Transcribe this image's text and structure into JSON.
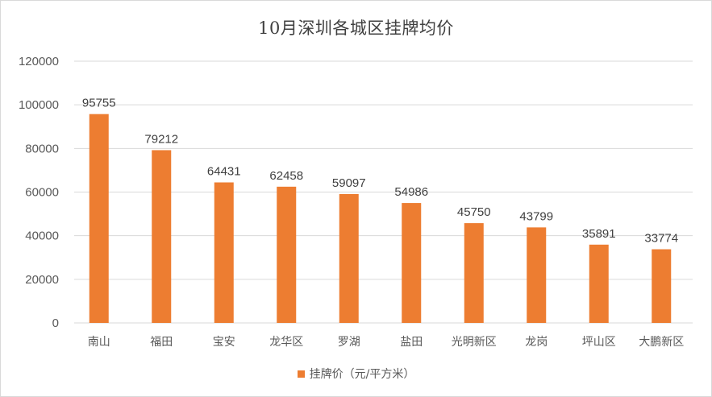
{
  "colors": {
    "bar": "#ed7d31",
    "grid": "#d9d9d9",
    "text": "#595959"
  },
  "chart_data": {
    "type": "bar",
    "title": "10月深圳各城区挂牌均价",
    "categories": [
      "南山",
      "福田",
      "宝安",
      "龙华区",
      "罗湖",
      "盐田",
      "光明新区",
      "龙岗",
      "坪山区",
      "大鹏新区"
    ],
    "series": [
      {
        "name": "挂牌价（元/平方米）",
        "values": [
          95755,
          79212,
          64431,
          62458,
          59097,
          54986,
          45750,
          43799,
          35891,
          33774
        ]
      }
    ],
    "ylim": [
      0,
      120000
    ],
    "yticks": [
      0,
      20000,
      40000,
      60000,
      80000,
      100000,
      120000
    ],
    "ytick_labels": [
      "0",
      "20000",
      "40000",
      "60000",
      "80000",
      "100000",
      "120000"
    ],
    "grid": true,
    "data_labels": true,
    "legend": "bottom"
  }
}
